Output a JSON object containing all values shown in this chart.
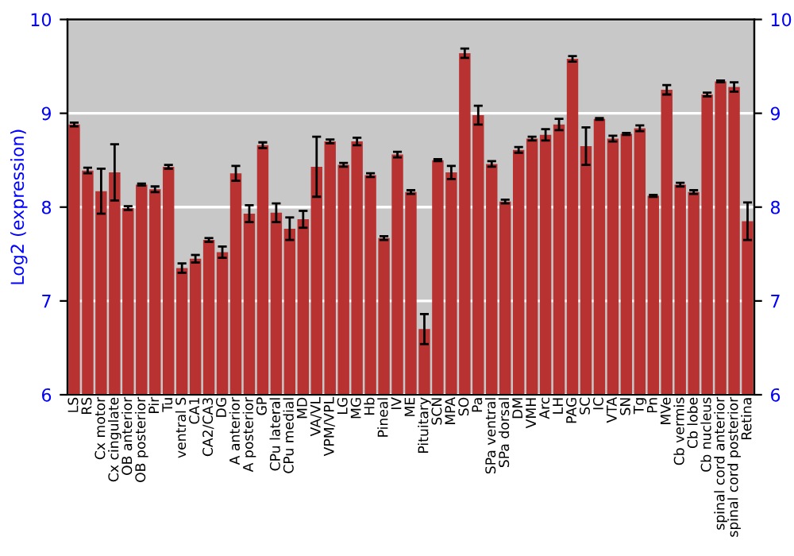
{
  "chart_data": {
    "type": "bar",
    "ylabel": "Log2 (expression)",
    "categories": [
      "LS",
      "RS",
      "Cx motor",
      "Cx cingulate",
      "OB anterior",
      "OB posterior",
      "Pir",
      "Tu",
      "ventral S",
      "CA1",
      "CA2/CA3",
      "DG",
      "A anterior",
      "A posterior",
      "GP",
      "CPu lateral",
      "CPu medial",
      "MD",
      "VA/VL",
      "VPM/VPL",
      "LG",
      "MG",
      "Hb",
      "Pineal",
      "IV",
      "ME",
      "Pituitary",
      "SCN",
      "MPA",
      "SO",
      "Pa",
      "SPa ventral",
      "SPa dorsal",
      "DM",
      "VMH",
      "Arc",
      "LH",
      "PAG",
      "SC",
      "IC",
      "VTA",
      "SN",
      "Tg",
      "Pn",
      "MVe",
      "Cb vermis",
      "Cb lobe",
      "Cb nucleus",
      "spinal cord anterior",
      "spinal cord posterior",
      "Retina"
    ],
    "series": [
      {
        "color": "#b83232",
        "values": [
          8.88,
          8.39,
          8.17,
          8.37,
          7.99,
          8.24,
          8.19,
          8.43,
          7.35,
          7.45,
          7.65,
          7.52,
          8.36,
          7.93,
          8.66,
          7.94,
          7.77,
          7.87,
          8.43,
          8.7,
          8.45,
          8.7,
          8.34,
          7.67,
          8.56,
          8.16,
          6.7,
          8.5,
          8.37,
          9.64,
          8.98,
          8.46,
          8.06,
          8.61,
          8.73,
          8.77,
          8.88,
          9.58,
          8.65,
          8.94,
          8.73,
          8.78,
          8.84,
          8.12,
          9.25,
          8.24,
          8.16,
          9.2,
          9.34,
          9.28,
          7.85
        ],
        "errors": [
          0.02,
          0.03,
          0.24,
          0.3,
          0.02,
          0.01,
          0.03,
          0.02,
          0.05,
          0.04,
          0.02,
          0.06,
          0.08,
          0.09,
          0.03,
          0.1,
          0.12,
          0.09,
          0.32,
          0.02,
          0.02,
          0.04,
          0.02,
          0.02,
          0.03,
          0.02,
          0.16,
          0.01,
          0.07,
          0.05,
          0.1,
          0.03,
          0.02,
          0.03,
          0.02,
          0.06,
          0.06,
          0.03,
          0.2,
          0.01,
          0.03,
          0.01,
          0.03,
          0.01,
          0.05,
          0.02,
          0.02,
          0.02,
          0.01,
          0.05,
          0.2
        ]
      }
    ],
    "ylim": [
      6,
      10
    ],
    "yticks": [
      6,
      7,
      8,
      9,
      10
    ],
    "y2lim": [
      6,
      10
    ],
    "y2ticks": [
      6,
      7,
      8,
      9,
      10
    ],
    "grid": "y"
  }
}
